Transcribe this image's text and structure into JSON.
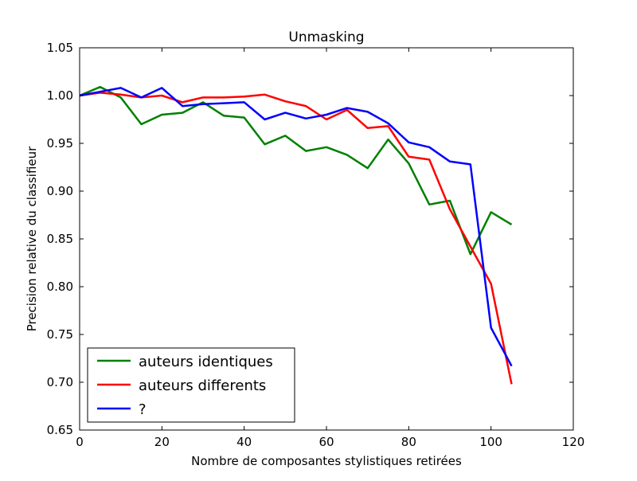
{
  "chart_data": {
    "type": "line",
    "title": "Unmasking",
    "xlabel": "Nombre de composantes stylistiques retirées",
    "ylabel": "Precision relative du classifieur",
    "xlim": [
      0,
      120
    ],
    "ylim": [
      0.65,
      1.05
    ],
    "xticks": [
      0,
      20,
      40,
      60,
      80,
      100,
      120
    ],
    "xtick_labels": [
      "0",
      "20",
      "40",
      "60",
      "80",
      "100",
      "120"
    ],
    "yticks": [
      0.65,
      0.7,
      0.75,
      0.8,
      0.85,
      0.9,
      0.95,
      1.0,
      1.05
    ],
    "ytick_labels": [
      "0.65",
      "0.70",
      "0.75",
      "0.80",
      "0.85",
      "0.90",
      "0.95",
      "1.00",
      "1.05"
    ],
    "grid": false,
    "legend_position": "lower-left",
    "x": [
      0,
      5,
      10,
      15,
      20,
      25,
      30,
      35,
      40,
      45,
      50,
      55,
      60,
      65,
      70,
      75,
      80,
      85,
      90,
      95,
      100,
      105
    ],
    "series": [
      {
        "name": "auteurs identiques",
        "color": "#008000",
        "values": [
          1.0,
          1.009,
          0.998,
          0.97,
          0.98,
          0.982,
          0.993,
          0.979,
          0.977,
          0.949,
          0.958,
          0.942,
          0.946,
          0.938,
          0.924,
          0.954,
          0.929,
          0.886,
          0.89,
          0.834,
          0.878,
          0.865
        ]
      },
      {
        "name": "auteurs differents",
        "color": "#ff0000",
        "values": [
          1.0,
          1.003,
          1.001,
          0.998,
          1.0,
          0.993,
          0.998,
          0.998,
          0.999,
          1.001,
          0.994,
          0.989,
          0.975,
          0.985,
          0.966,
          0.968,
          0.936,
          0.933,
          0.881,
          0.842,
          0.803,
          0.698
        ]
      },
      {
        "name": "?",
        "color": "#0000ff",
        "values": [
          1.0,
          1.004,
          1.008,
          0.998,
          1.008,
          0.989,
          0.991,
          0.992,
          0.993,
          0.975,
          0.982,
          0.976,
          0.98,
          0.987,
          0.983,
          0.971,
          0.951,
          0.946,
          0.931,
          0.928,
          0.757,
          0.717
        ]
      }
    ]
  }
}
